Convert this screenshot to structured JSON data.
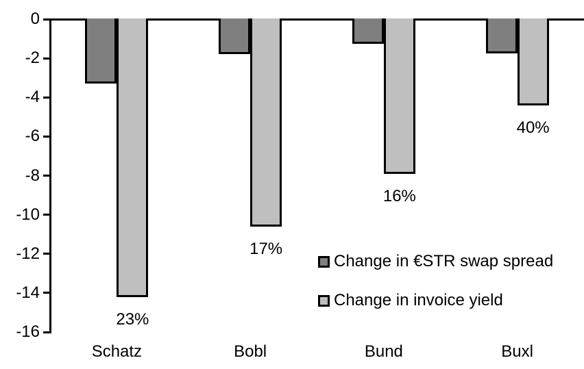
{
  "chart_data": {
    "type": "bar",
    "title": "",
    "xlabel": "",
    "ylabel": "",
    "categories": [
      "Schatz",
      "Bobl",
      "Bund",
      "Buxl"
    ],
    "series": [
      {
        "name": "Change in €STR swap spread",
        "color": "#7f7f7f",
        "values": [
          -3.3,
          -1.8,
          -1.25,
          -1.75
        ]
      },
      {
        "name": "Change in invoice yield",
        "color": "#bfbfbf",
        "values": [
          -14.2,
          -10.6,
          -7.9,
          -4.4
        ]
      }
    ],
    "bar_labels": {
      "series": "Change in invoice yield",
      "values": [
        "23%",
        "17%",
        "16%",
        "40%"
      ]
    },
    "ylim": [
      -16,
      0
    ],
    "yticks": [
      0,
      -2,
      -4,
      -6,
      -8,
      -10,
      -12,
      -14,
      -16
    ],
    "grid": false,
    "legend_position": "inside-right",
    "axis_color": "#000000",
    "bar_border_color": "#000000",
    "text_color": "#000000",
    "background_color": "#ffffff"
  }
}
